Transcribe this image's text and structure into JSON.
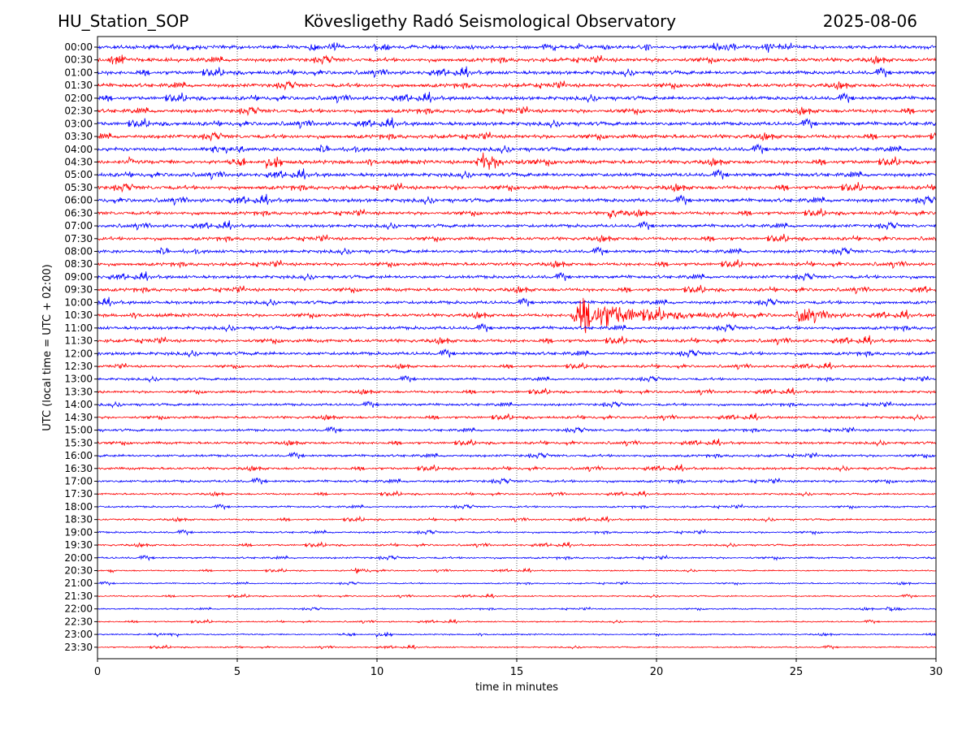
{
  "header": {
    "station": "HU_Station_SOP",
    "observatory": "Kövesligethy Radó Seismological Observatory",
    "date": "2025-08-06"
  },
  "chart_data": {
    "type": "line",
    "title": "Kövesligethy Radó Seismological Observatory",
    "xlabel": "time in minutes",
    "ylabel": "UTC (local time = UTC + 02:00)",
    "xlim": [
      0,
      30
    ],
    "xticks": [
      0,
      5,
      10,
      15,
      20,
      25,
      30
    ],
    "grid": "vertical dotted at x ticks",
    "rows": [
      "00:00",
      "00:30",
      "01:00",
      "01:30",
      "02:00",
      "02:30",
      "03:00",
      "03:30",
      "04:00",
      "04:30",
      "05:00",
      "05:30",
      "06:00",
      "06:30",
      "07:00",
      "07:30",
      "08:00",
      "08:30",
      "09:00",
      "09:30",
      "10:00",
      "10:30",
      "11:00",
      "11:30",
      "12:00",
      "12:30",
      "13:00",
      "13:30",
      "14:00",
      "14:30",
      "15:00",
      "15:30",
      "16:00",
      "16:30",
      "17:00",
      "17:30",
      "18:00",
      "18:30",
      "19:00",
      "19:30",
      "20:00",
      "20:30",
      "21:00",
      "21:30",
      "22:00",
      "22:30",
      "23:00",
      "23:30"
    ],
    "colors": {
      "even_rows": "#0000ff",
      "odd_rows": "#ff0000"
    },
    "events": [
      {
        "row": "04:30",
        "start_min": 13.5,
        "duration_min": 1.8,
        "amplitude": "large"
      },
      {
        "row": "06:30",
        "start_min": 18.2,
        "duration_min": 0.9,
        "amplitude": "moderate"
      },
      {
        "row": "10:30",
        "start_min": 16.9,
        "duration_min": 4.5,
        "amplitude": "very large"
      },
      {
        "row": "10:30",
        "start_min": 25.0,
        "duration_min": 1.6,
        "amplitude": "large"
      },
      {
        "row": "20:30",
        "start_min": 9.2,
        "duration_min": 0.8,
        "amplitude": "small"
      },
      {
        "row": "22:00",
        "start_min": 28.2,
        "duration_min": 0.9,
        "amplitude": "small"
      }
    ]
  }
}
